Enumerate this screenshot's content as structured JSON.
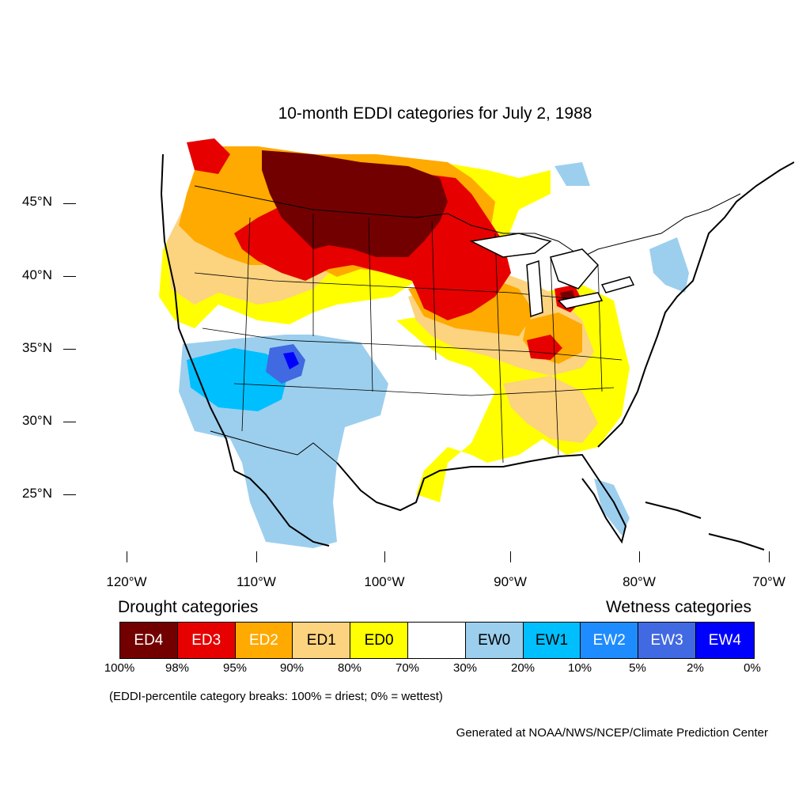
{
  "title": "10-month EDDI categories for July 2, 1988",
  "lat_labels": [
    "45°N",
    "40°N",
    "35°N",
    "30°N",
    "25°N"
  ],
  "lon_labels": [
    "120°W",
    "110°W",
    "100°W",
    "90°W",
    "80°W",
    "70°W"
  ],
  "legend": {
    "drought_heading": "Drought categories",
    "wetness_heading": "Wetness categories",
    "categories": [
      {
        "label": "ED4",
        "color": "#730000",
        "text_color": "#ffffff"
      },
      {
        "label": "ED3",
        "color": "#e60000",
        "text_color": "#ffffff"
      },
      {
        "label": "ED2",
        "color": "#ffaa00",
        "text_color": "#ffffff"
      },
      {
        "label": "ED1",
        "color": "#fcd37f",
        "text_color": "#000000"
      },
      {
        "label": "ED0",
        "color": "#ffff00",
        "text_color": "#000000"
      },
      {
        "label": "",
        "color": "#ffffff",
        "text_color": "#000000"
      },
      {
        "label": "EW0",
        "color": "#9ccfee",
        "text_color": "#000000"
      },
      {
        "label": "EW1",
        "color": "#00bfff",
        "text_color": "#000000"
      },
      {
        "label": "EW2",
        "color": "#1e8cff",
        "text_color": "#ffffff"
      },
      {
        "label": "EW3",
        "color": "#4169e1",
        "text_color": "#ffffff"
      },
      {
        "label": "EW4",
        "color": "#0000ff",
        "text_color": "#ffffff"
      }
    ],
    "breaks": [
      "100%",
      "98%",
      "95%",
      "90%",
      "80%",
      "70%",
      "30%",
      "20%",
      "10%",
      "5%",
      "2%",
      "0%"
    ]
  },
  "note": "(EDDI-percentile category breaks: 100% = driest; 0% = wettest)",
  "credit": "Generated at NOAA/NWS/NCEP/Climate Prediction Center",
  "map_regions": [
    {
      "region": "Montana / Dakotas / Minnesota",
      "category": "ED4"
    },
    {
      "region": "Idaho / Wyoming / Nebraska / Iowa / Illinois",
      "category": "ED3"
    },
    {
      "region": "Pacific Northwest / Northern Plains",
      "category": "ED2"
    },
    {
      "region": "Ohio Valley / Midwest",
      "category": "ED1"
    },
    {
      "region": "Southeast / Gulf Coast / California coast",
      "category": "ED0"
    },
    {
      "region": "Southwest / Texas / Florida",
      "category": "EW0"
    },
    {
      "region": "Arizona / New Mexico",
      "category": "EW1"
    },
    {
      "region": "Northern New Mexico",
      "category": "EW3"
    }
  ]
}
